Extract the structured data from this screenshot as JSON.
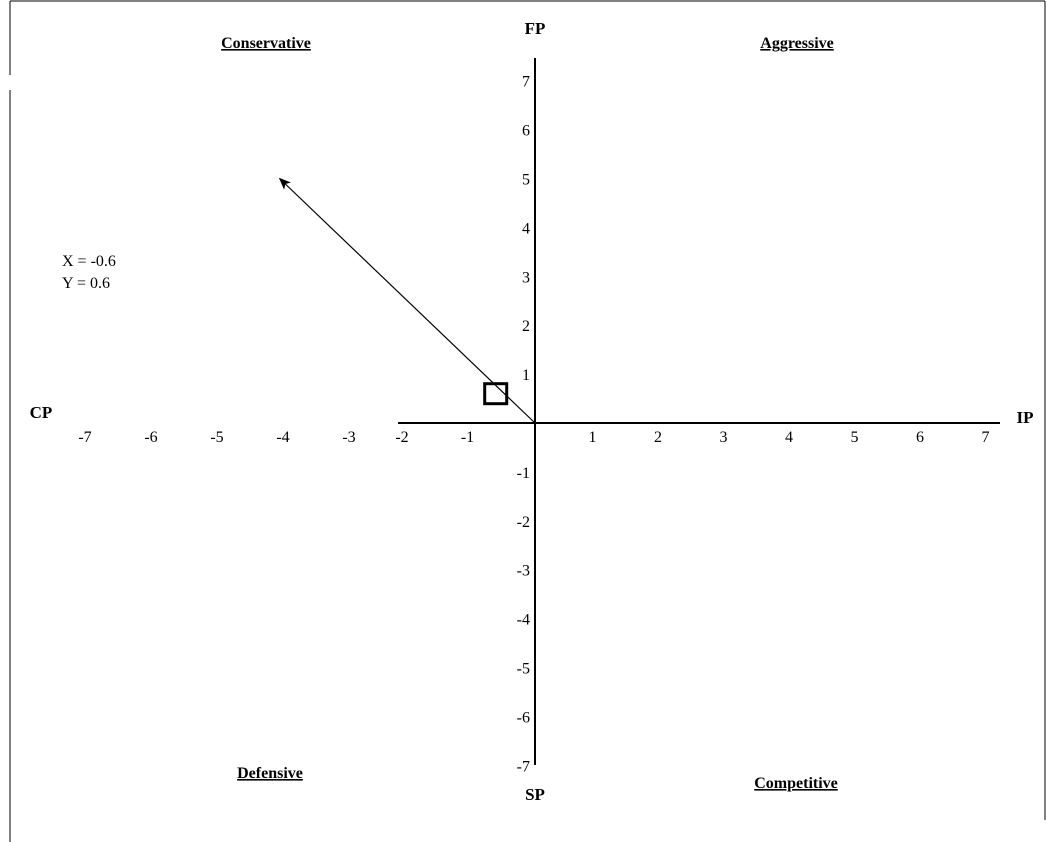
{
  "chart_data": {
    "type": "scatter",
    "title": "",
    "axes": {
      "x_positive_label": "IP",
      "x_negative_label": "CP",
      "y_positive_label": "FP",
      "y_negative_label": "SP"
    },
    "xlim": [
      -7,
      7
    ],
    "ylim": [
      -7,
      7
    ],
    "x_ticks": [
      "-7",
      "-6",
      "-5",
      "-4",
      "-3",
      "-2",
      "-1",
      "1",
      "2",
      "3",
      "4",
      "5",
      "6",
      "7"
    ],
    "y_ticks_positive": [
      "1",
      "2",
      "3",
      "4",
      "5",
      "6",
      "7"
    ],
    "y_ticks_negative": [
      "-1",
      "-2",
      "-3",
      "-4",
      "-5",
      "-6",
      "-7"
    ],
    "quadrants": {
      "top_left": "Conservative",
      "top_right": "Aggressive",
      "bottom_left": "Defensive",
      "bottom_right": "Competitive"
    },
    "point": {
      "x": -0.6,
      "y": 0.6
    },
    "direction_vector": {
      "from": [
        0,
        0
      ],
      "to": [
        -3.9,
        5.0
      ]
    },
    "readout": {
      "x_text": "X = -0.6",
      "y_text": "Y = 0.6"
    },
    "grid": false,
    "colors": {
      "axis": "#000000",
      "text": "#000000",
      "background": "#ffffff"
    }
  }
}
